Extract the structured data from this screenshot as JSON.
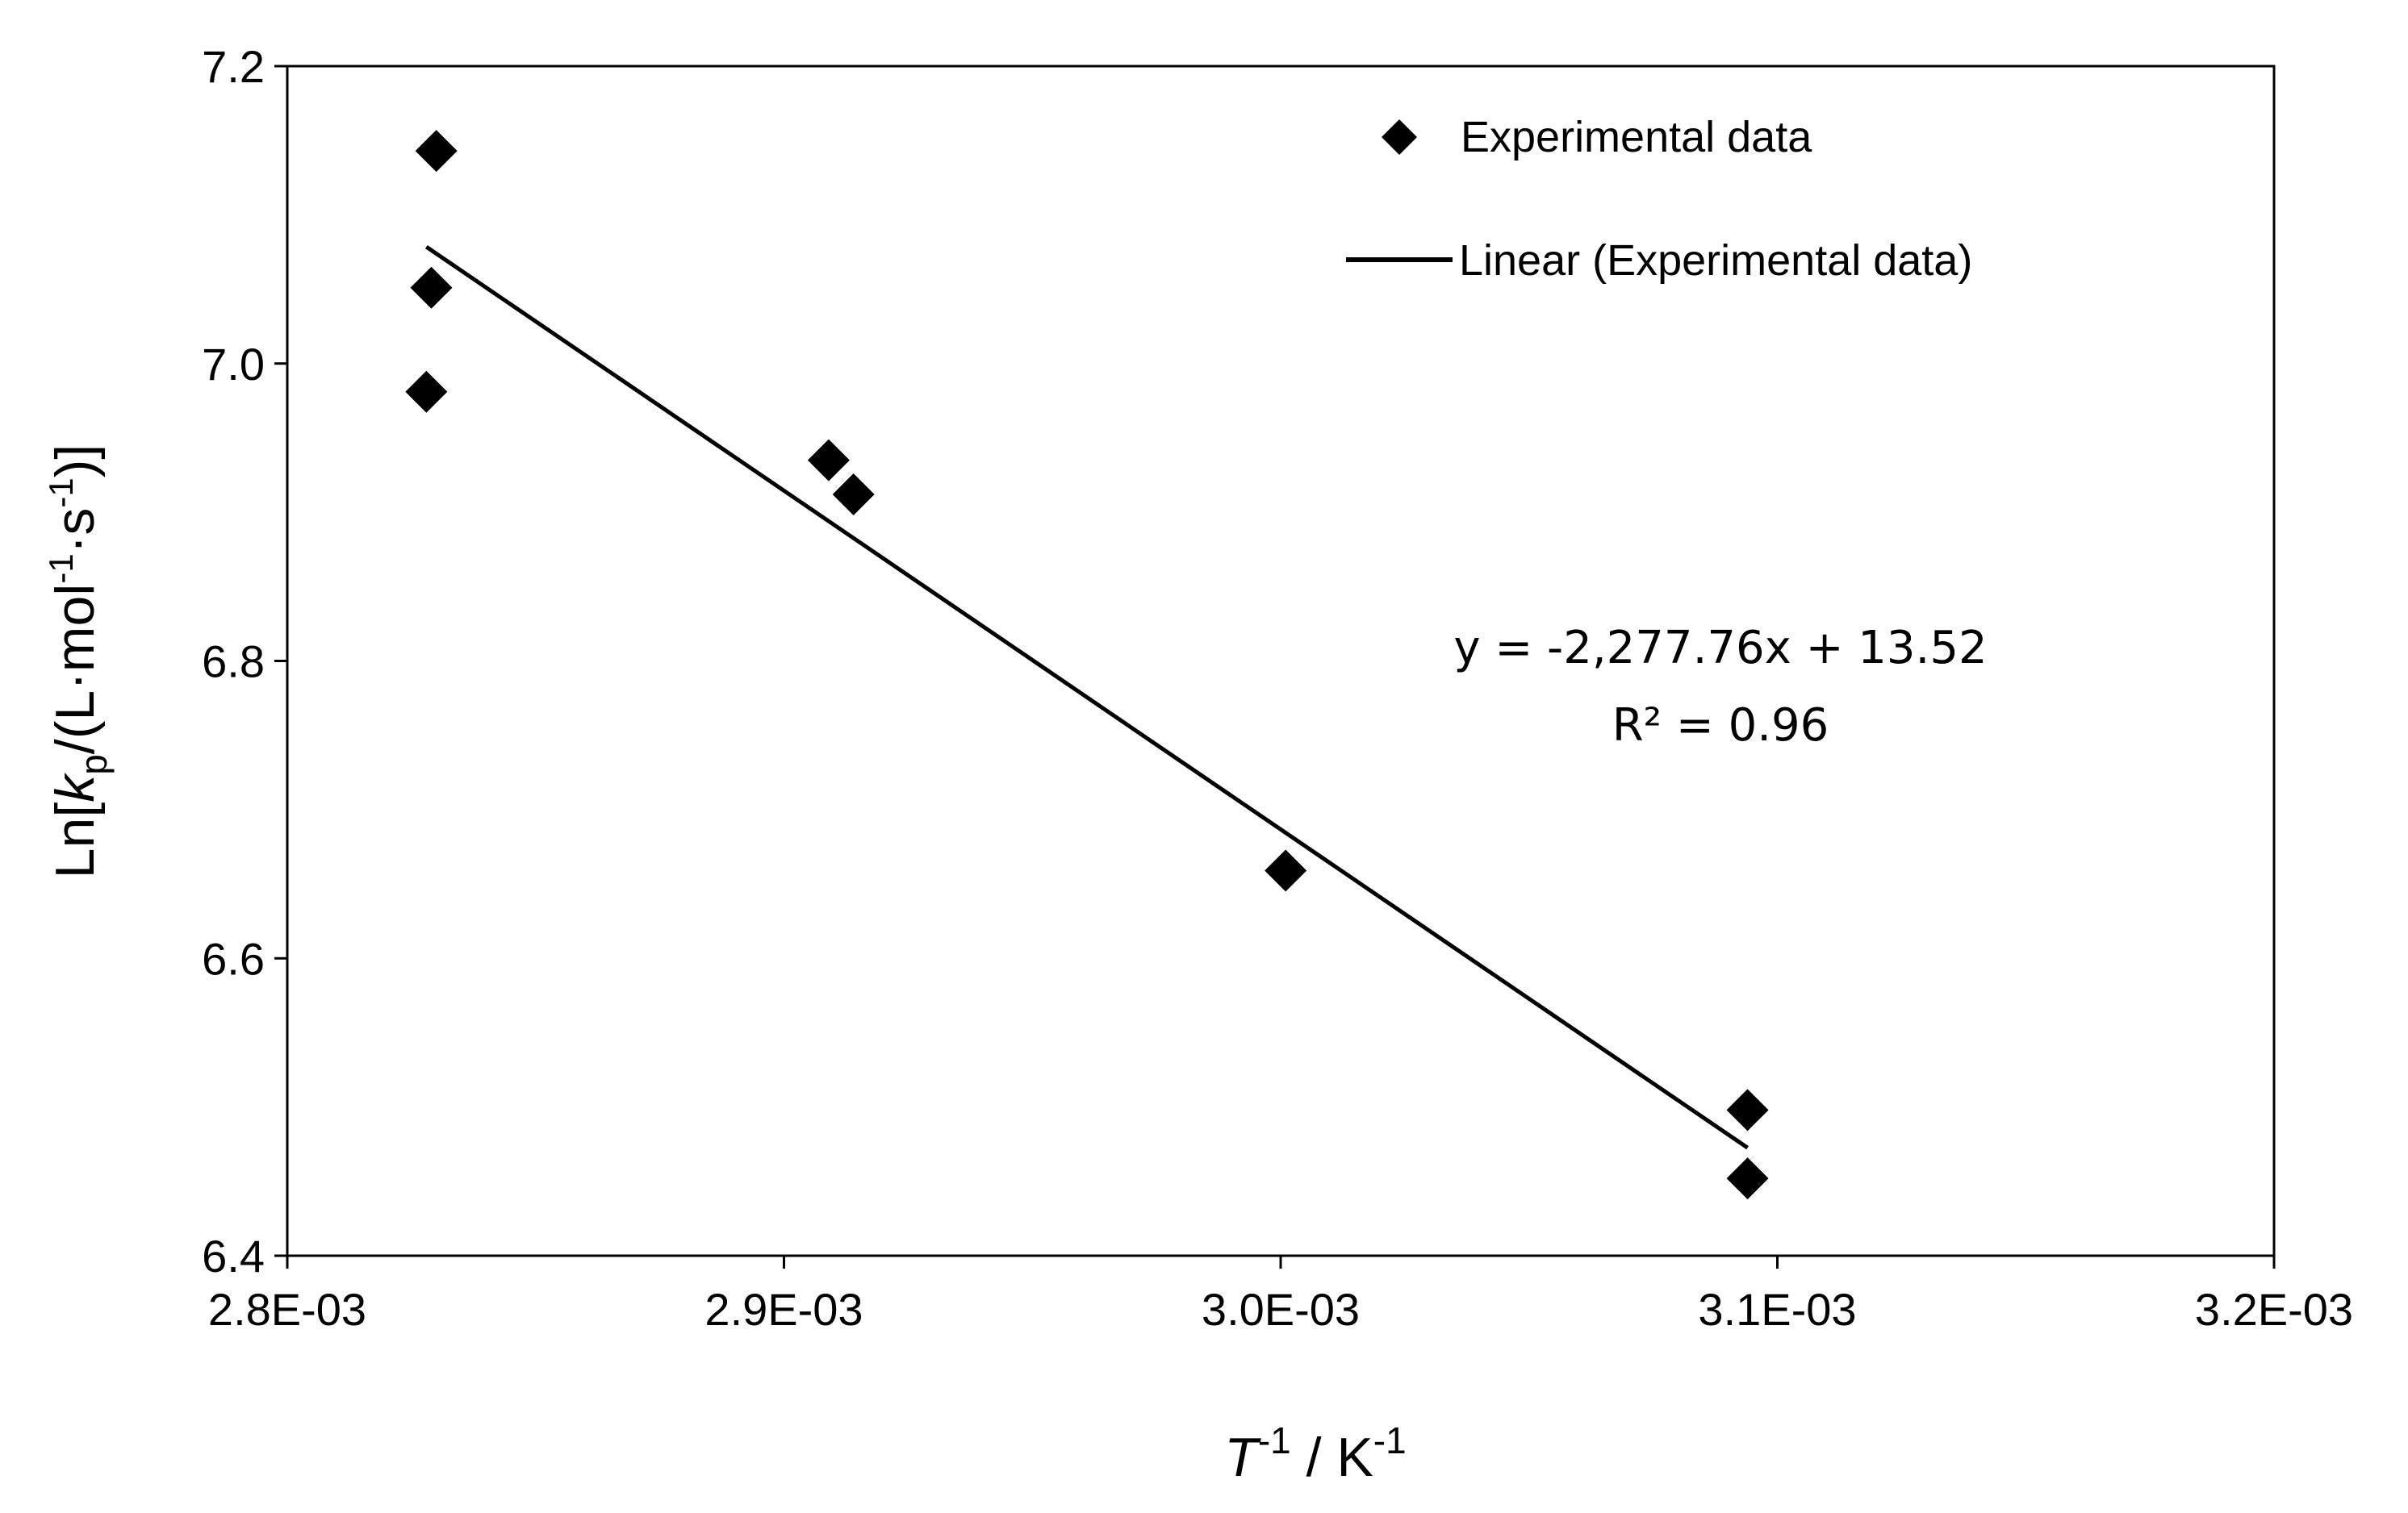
{
  "chart_data": {
    "type": "scatter",
    "title": "",
    "xlabel": {
      "base": "T",
      "exp": "-1",
      "sep": " / K",
      "unit_exp": "-1"
    },
    "ylabel": {
      "prefix": "Ln[",
      "k": "k",
      "sub": "p",
      "mid1": "/(L·mol",
      "exp1": "-1",
      "mid2": "·s",
      "exp2": "-1",
      "suffix": ")]"
    },
    "xlim": [
      0.0028,
      0.0032
    ],
    "ylim": [
      6.4,
      7.2
    ],
    "x_ticks": [
      0.0028,
      0.0029,
      0.003,
      0.0031,
      0.0032
    ],
    "x_tick_labels": [
      "2.8E-03",
      "2.9E-03",
      "3.0E-03",
      "3.1E-03",
      "3.2E-03"
    ],
    "y_ticks": [
      6.4,
      6.6,
      6.8,
      7.0,
      7.2
    ],
    "y_tick_labels": [
      "6.4",
      "6.6",
      "6.8",
      "7.0",
      "7.2"
    ],
    "grid": false,
    "series": [
      {
        "name": "Experimental data",
        "marker": "diamond",
        "color": "#000000",
        "points": [
          {
            "x": 0.00283,
            "y": 7.143
          },
          {
            "x": 0.002829,
            "y": 7.051
          },
          {
            "x": 0.002828,
            "y": 6.981
          },
          {
            "x": 0.002909,
            "y": 6.935
          },
          {
            "x": 0.002914,
            "y": 6.912
          },
          {
            "x": 0.003001,
            "y": 6.659
          },
          {
            "x": 0.003094,
            "y": 6.498
          },
          {
            "x": 0.003094,
            "y": 6.452
          }
        ]
      }
    ],
    "trendline": {
      "name": "Linear (Experimental data)",
      "color": "#000000",
      "x_start": 0.002828,
      "x_end": 0.003094,
      "slope": -2277.76,
      "intercept": 13.52
    },
    "legend": {
      "placement": "top-right",
      "entries": [
        "Experimental data",
        "Linear (Experimental data)"
      ]
    },
    "annotations": {
      "equation": "y = -2,277.76x + 13.52",
      "r_squared": "R² = 0.96"
    }
  }
}
